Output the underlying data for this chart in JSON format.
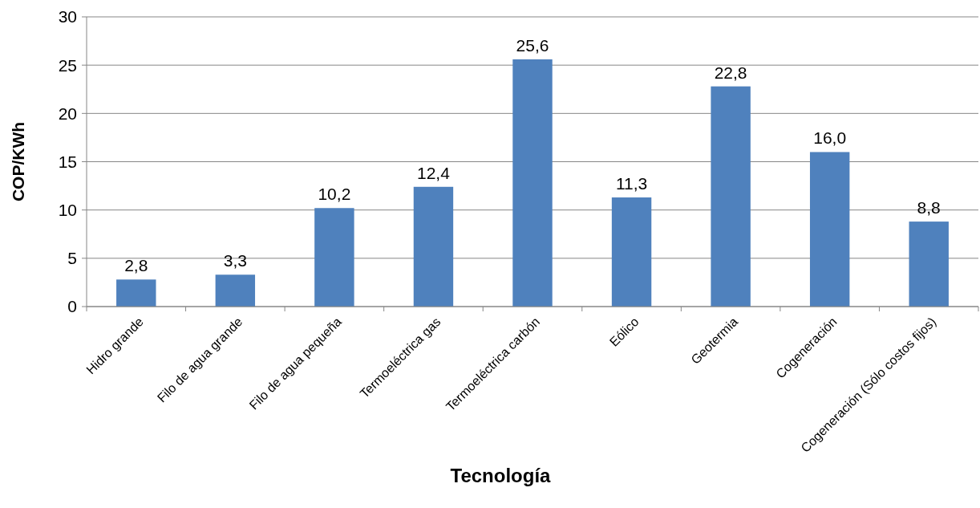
{
  "chart_data": {
    "type": "bar",
    "xlabel": "Tecnología",
    "ylabel": "COP/KWh",
    "categories": [
      "Hidro grande",
      "Filo de agua grande",
      "Filo de agua pequeña",
      "Termoeléctrica gas",
      "Termoeléctrica carbón",
      "Eólico",
      "Geotermia",
      "Cogeneración",
      "Cogeneración (Sólo costos fijos)"
    ],
    "values": [
      2.8,
      3.3,
      10.2,
      12.4,
      25.6,
      11.3,
      22.8,
      16.0,
      8.8
    ],
    "value_labels": [
      "2,8",
      "3,3",
      "10,2",
      "12,4",
      "25,6",
      "11,3",
      "22,8",
      "16,0",
      "8,8"
    ],
    "color": "#4f81bd",
    "ylim": [
      0,
      30
    ],
    "yticks": [
      0,
      5,
      10,
      15,
      20,
      25,
      30
    ],
    "grid": "y"
  }
}
